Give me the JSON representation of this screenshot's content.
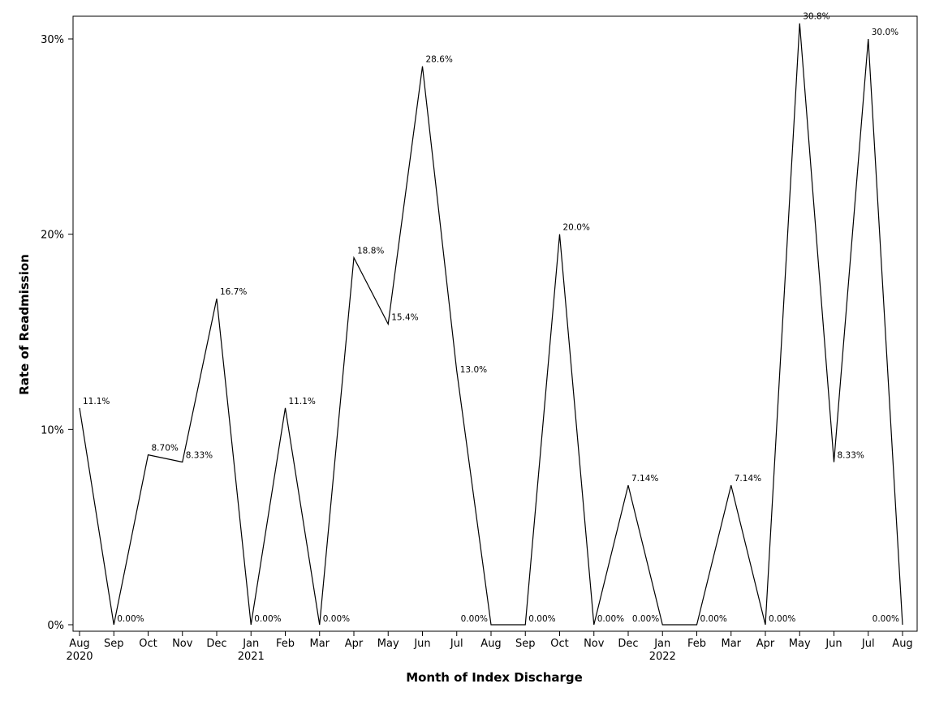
{
  "chart_data": {
    "type": "line",
    "title": "",
    "xlabel": "Month of Index Discharge",
    "ylabel": "Rate of Readmission",
    "ylim": [
      0,
      30
    ],
    "yticks": [
      "0%",
      "10%",
      "20%",
      "30%"
    ],
    "ytick_values": [
      0,
      10,
      20,
      30
    ],
    "grid": false,
    "legend": "none",
    "categories": [
      "Aug",
      "Sep",
      "Oct",
      "Nov",
      "Dec",
      "Jan",
      "Feb",
      "Mar",
      "Apr",
      "May",
      "Jun",
      "Jul",
      "Aug",
      "Sep",
      "Oct",
      "Nov",
      "Dec",
      "Jan",
      "Feb",
      "Mar",
      "Apr",
      "May",
      "Jun",
      "Jul",
      "Aug"
    ],
    "year_labels": [
      "2020",
      "",
      "",
      "",
      "",
      "2021",
      "",
      "",
      "",
      "",
      "",
      "",
      "",
      "",
      "",
      "",
      "",
      "2022",
      "",
      "",
      "",
      "",
      "",
      "",
      ""
    ],
    "values": [
      11.1,
      0,
      8.7,
      8.33,
      16.7,
      0,
      11.1,
      0,
      18.8,
      15.4,
      28.6,
      13.0,
      0,
      0,
      20.0,
      0,
      7.14,
      0,
      0,
      7.14,
      0,
      30.8,
      8.33,
      30.0,
      0
    ],
    "point_labels": [
      "11.1%",
      "0.00%",
      "8.70%",
      "8.33%",
      "16.7%",
      "0.00%",
      "11.1%",
      "0.00%",
      "18.8%",
      "15.4%",
      "28.6%",
      "13.0%",
      "0.00%",
      "0.00%",
      "20.0%",
      "0.00%",
      "7.14%",
      "0.00%",
      "0.00%",
      "7.14%",
      "0.00%",
      "30.8%",
      "8.33%",
      "30.0%",
      "0.00%"
    ],
    "line_color": "#000000"
  }
}
